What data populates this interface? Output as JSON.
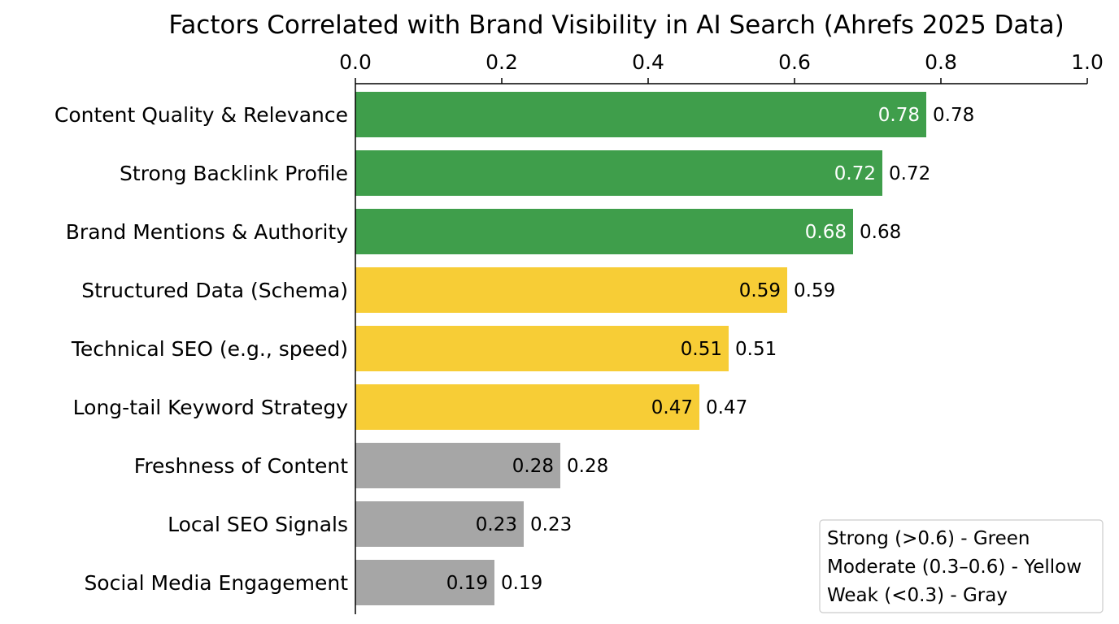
{
  "chart_data": {
    "type": "bar",
    "orientation": "horizontal",
    "title": "Factors Correlated with Brand Visibility in AI Search (Ahrefs 2025 Data)",
    "xlabel": "",
    "ylabel": "",
    "xlim": [
      0,
      1.0
    ],
    "x_axis_position": "top",
    "xticks": [
      "0.0",
      "0.2",
      "0.4",
      "0.6",
      "0.8",
      "1.0"
    ],
    "grid": false,
    "categories": [
      "Content Quality & Relevance",
      "Strong Backlink Profile",
      "Brand Mentions & Authority",
      "Structured Data (Schema)",
      "Technical SEO (e.g., speed)",
      "Long-tail Keyword Strategy",
      "Freshness of Content",
      "Local SEO Signals",
      "Social Media Engagement"
    ],
    "values": [
      0.78,
      0.72,
      0.68,
      0.59,
      0.51,
      0.47,
      0.28,
      0.23,
      0.19
    ],
    "value_labels": [
      "0.78",
      "0.72",
      "0.68",
      "0.59",
      "0.51",
      "0.47",
      "0.28",
      "0.23",
      "0.19"
    ],
    "colors": {
      "strong": "#3f9e4b",
      "moderate": "#f7cd36",
      "weak": "#a6a6a6"
    },
    "legend": {
      "placement": "lower-right",
      "entries": [
        "Strong (>0.6) - Green",
        "Moderate (0.3–0.6) - Yellow",
        "Weak (<0.3) - Gray"
      ]
    }
  }
}
